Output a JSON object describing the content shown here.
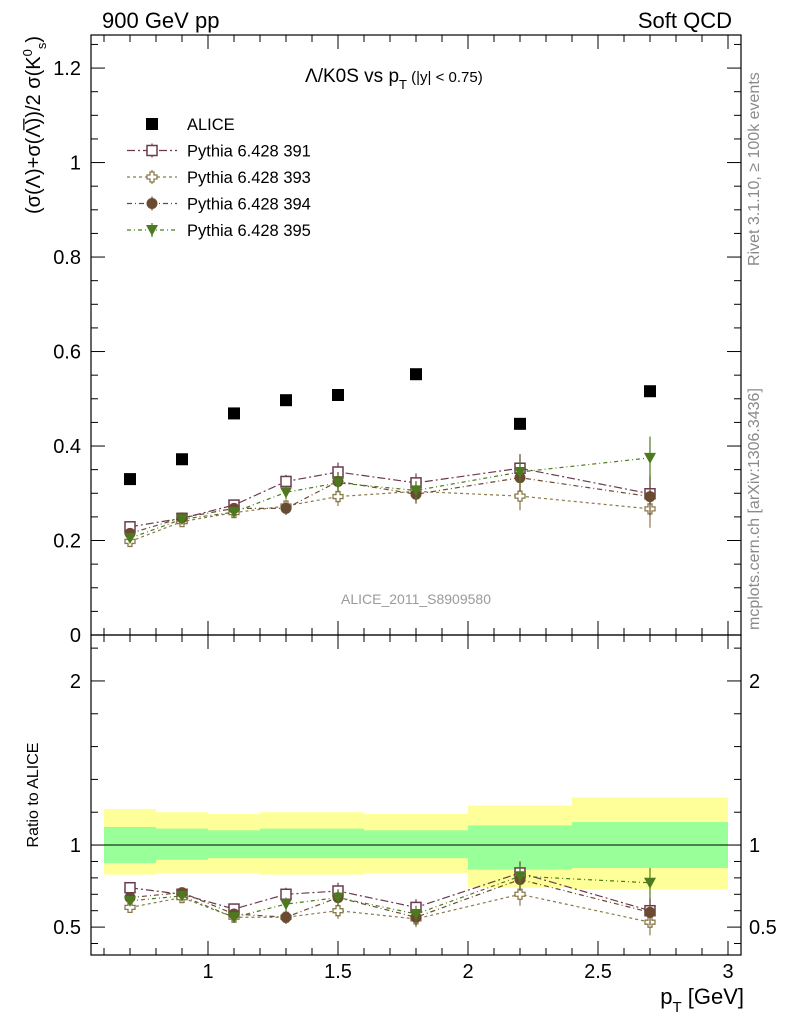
{
  "header": {
    "left": "900 GeV pp",
    "right": "Soft QCD"
  },
  "side_labels": {
    "rivet": "Rivet 3.1.10, ≥ 100k events",
    "mcplots": "mcplots.cern.ch [arXiv:1306.3436]"
  },
  "chart_data": {
    "type": "scatter",
    "title": "Λ/K0S vs pT (|y| < 0.75)",
    "watermark": "ALICE_2011_S8909580",
    "xlabel": "pT [GeV]",
    "ylabel": "(σ(Λ)+σ(Λ̅))/2 σ(K0s)",
    "ratio_ylabel": "Ratio to ALICE",
    "xlim": [
      0.55,
      3.05
    ],
    "ylim": [
      0,
      1.27
    ],
    "ratio_ylim": [
      0.33,
      2.28
    ],
    "x_ticks": [
      1,
      1.5,
      2,
      2.5,
      3
    ],
    "x_tick_labels": [
      "1",
      "1.5",
      "2",
      "2.5",
      "3"
    ],
    "y_ticks": [
      0,
      0.2,
      0.4,
      0.6,
      0.8,
      1,
      1.2
    ],
    "y_tick_labels": [
      "0",
      "0.2",
      "0.4",
      "0.6",
      "0.8",
      "1",
      "1.2"
    ],
    "ratio_ticks": [
      0.5,
      1,
      2
    ],
    "ratio_tick_labels": [
      "0.5",
      "1",
      "2"
    ],
    "bins": [
      [
        0.6,
        0.8
      ],
      [
        0.8,
        1.0
      ],
      [
        1.0,
        1.2
      ],
      [
        1.2,
        1.4
      ],
      [
        1.4,
        1.6
      ],
      [
        1.6,
        2.0
      ],
      [
        2.0,
        2.4
      ],
      [
        2.4,
        3.0
      ]
    ],
    "x": [
      0.7,
      0.9,
      1.1,
      1.3,
      1.5,
      1.8,
      2.2,
      2.7
    ],
    "series": [
      {
        "name": "ALICE",
        "marker": "filled-square",
        "color": "#000000",
        "values": [
          0.33,
          0.372,
          0.469,
          0.497,
          0.508,
          0.552,
          0.447,
          0.516
        ],
        "errors": [
          0,
          0,
          0,
          0,
          0,
          0,
          0,
          0
        ],
        "ratio": null
      },
      {
        "name": "Pythia 6.428 391",
        "marker": "open-square",
        "color": "#6b3a4f",
        "values": [
          0.229,
          0.247,
          0.275,
          0.325,
          0.345,
          0.322,
          0.353,
          0.299
        ],
        "errors": [
          0.006,
          0.008,
          0.01,
          0.014,
          0.02,
          0.02,
          0.03,
          0.04
        ],
        "ratio": [
          0.74,
          0.7,
          0.61,
          0.7,
          0.72,
          0.62,
          0.83,
          0.6
        ],
        "ratio_errors": [
          0.02,
          0.03,
          0.03,
          0.04,
          0.05,
          0.05,
          0.07,
          0.08
        ]
      },
      {
        "name": "Pythia 6.428 393",
        "marker": "open-cross",
        "color": "#8a7a4a",
        "values": [
          0.198,
          0.24,
          0.259,
          0.273,
          0.293,
          0.304,
          0.294,
          0.267
        ],
        "errors": [
          0.006,
          0.008,
          0.01,
          0.014,
          0.02,
          0.02,
          0.03,
          0.04
        ],
        "ratio": [
          0.62,
          0.68,
          0.56,
          0.56,
          0.6,
          0.55,
          0.7,
          0.53
        ],
        "ratio_errors": [
          0.02,
          0.03,
          0.03,
          0.04,
          0.05,
          0.05,
          0.07,
          0.08
        ]
      },
      {
        "name": "Pythia 6.428 394",
        "marker": "filled-circle",
        "color": "#6b4a32",
        "values": [
          0.215,
          0.248,
          0.268,
          0.268,
          0.325,
          0.298,
          0.333,
          0.293
        ],
        "errors": [
          0.006,
          0.008,
          0.01,
          0.014,
          0.02,
          0.02,
          0.03,
          0.04
        ],
        "ratio": [
          0.68,
          0.71,
          0.58,
          0.56,
          0.68,
          0.56,
          0.79,
          0.59
        ],
        "ratio_errors": [
          0.02,
          0.03,
          0.03,
          0.04,
          0.05,
          0.05,
          0.07,
          0.08
        ]
      },
      {
        "name": "Pythia 6.428 395",
        "marker": "filled-triangle-down",
        "color": "#4d7a1e",
        "values": [
          0.205,
          0.245,
          0.26,
          0.302,
          0.322,
          0.306,
          0.345,
          0.375
        ],
        "errors": [
          0.006,
          0.008,
          0.01,
          0.014,
          0.02,
          0.02,
          0.03,
          0.045
        ],
        "ratio": [
          0.66,
          0.69,
          0.56,
          0.64,
          0.68,
          0.58,
          0.81,
          0.77
        ],
        "ratio_errors": [
          0.02,
          0.03,
          0.03,
          0.04,
          0.05,
          0.05,
          0.07,
          0.09
        ]
      }
    ],
    "ratio_band_inner": [
      [
        0.89,
        1.11
      ],
      [
        0.91,
        1.1
      ],
      [
        0.92,
        1.09
      ],
      [
        0.92,
        1.1
      ],
      [
        0.92,
        1.1
      ],
      [
        0.92,
        1.09
      ],
      [
        0.85,
        1.12
      ],
      [
        0.86,
        1.14
      ]
    ],
    "ratio_band_outer": [
      [
        0.82,
        1.22
      ],
      [
        0.83,
        1.2
      ],
      [
        0.83,
        1.19
      ],
      [
        0.82,
        1.2
      ],
      [
        0.82,
        1.2
      ],
      [
        0.83,
        1.19
      ],
      [
        0.74,
        1.24
      ],
      [
        0.73,
        1.29
      ]
    ],
    "colors": {
      "band_inner": "#99ff99",
      "band_outer": "#ffff99"
    },
    "legend_position": "top-left"
  }
}
